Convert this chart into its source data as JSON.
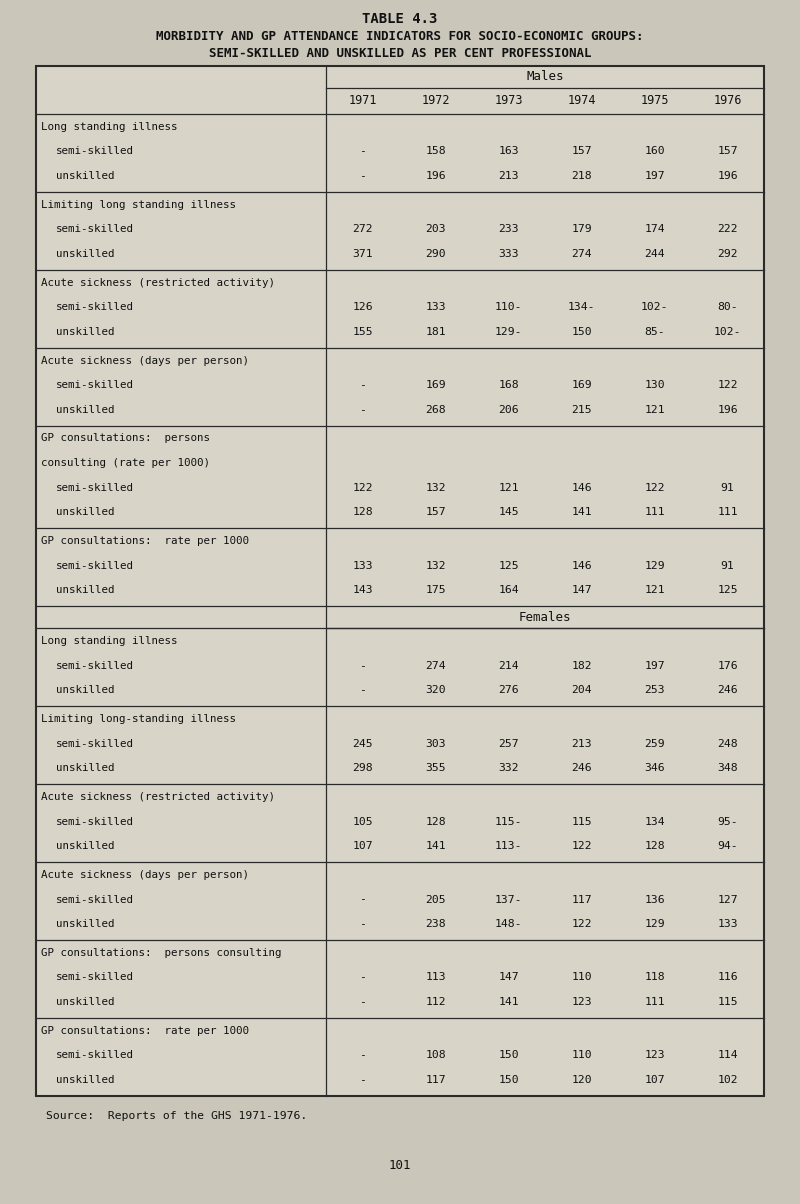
{
  "title_line1": "TABLE 4.3",
  "title_line2": "MORBIDITY AND GP ATTENDANCE INDICATORS FOR SOCIO-ECONOMIC GROUPS:",
  "title_line3": "SEMI-SKILLED AND UNSKILLED AS PER CENT PROFESSIONAL",
  "source": "Source:  Reports of the GHS 1971-1976.",
  "page_number": "101",
  "bg_color": "#cac6ba",
  "table_bg": "#cac6ba",
  "header_cols": [
    "1971",
    "1972",
    "1973",
    "1974",
    "1975",
    "1976"
  ],
  "male_groups": [
    {
      "title_lines": [
        "Long standing illness"
      ],
      "semi": [
        "-",
        "158",
        "163",
        "157",
        "160",
        "157"
      ],
      "unskilled": [
        "-",
        "196",
        "213",
        "218",
        "197",
        "196"
      ]
    },
    {
      "title_lines": [
        "Limiting long standing illness"
      ],
      "semi": [
        "272",
        "203",
        "233",
        "179",
        "174",
        "222"
      ],
      "unskilled": [
        "371",
        "290",
        "333",
        "274",
        "244",
        "292"
      ]
    },
    {
      "title_lines": [
        "Acute sickness (restricted activity)"
      ],
      "semi": [
        "126",
        "133",
        "110-",
        "134-",
        "102-",
        "80-"
      ],
      "unskilled": [
        "155",
        "181",
        "129-",
        "150",
        "85-",
        "102-"
      ]
    },
    {
      "title_lines": [
        "Acute sickness (days per person)"
      ],
      "semi": [
        "-",
        "169",
        "168",
        "169",
        "130",
        "122"
      ],
      "unskilled": [
        "-",
        "268",
        "206",
        "215",
        "121",
        "196"
      ]
    },
    {
      "title_lines": [
        "GP consultations:  persons",
        "consulting (rate per 1000)"
      ],
      "semi": [
        "122",
        "132",
        "121",
        "146",
        "122",
        "91"
      ],
      "unskilled": [
        "128",
        "157",
        "145",
        "141",
        "111",
        "111"
      ]
    },
    {
      "title_lines": [
        "GP consultations:  rate per 1000"
      ],
      "semi": [
        "133",
        "132",
        "125",
        "146",
        "129",
        "91"
      ],
      "unskilled": [
        "143",
        "175",
        "164",
        "147",
        "121",
        "125"
      ]
    }
  ],
  "female_groups": [
    {
      "title_lines": [
        "Long standing illness"
      ],
      "semi": [
        "-",
        "274",
        "214",
        "182",
        "197",
        "176"
      ],
      "unskilled": [
        "-",
        "320",
        "276",
        "204",
        "253",
        "246"
      ]
    },
    {
      "title_lines": [
        "Limiting long-standing illness"
      ],
      "semi": [
        "245",
        "303",
        "257",
        "213",
        "259",
        "248"
      ],
      "unskilled": [
        "298",
        "355",
        "332",
        "246",
        "346",
        "348"
      ]
    },
    {
      "title_lines": [
        "Acute sickness (restricted activity)"
      ],
      "semi": [
        "105",
        "128",
        "115-",
        "115",
        "134",
        "95-"
      ],
      "unskilled": [
        "107",
        "141",
        "113-",
        "122",
        "128",
        "94-"
      ]
    },
    {
      "title_lines": [
        "Acute sickness (days per person)"
      ],
      "semi": [
        "-",
        "205",
        "137-",
        "117",
        "136",
        "127"
      ],
      "unskilled": [
        "-",
        "238",
        "148-",
        "122",
        "129",
        "133"
      ]
    },
    {
      "title_lines": [
        "GP consultations:  persons consulting"
      ],
      "semi": [
        "-",
        "113",
        "147",
        "110",
        "118",
        "116"
      ],
      "unskilled": [
        "-",
        "112",
        "141",
        "123",
        "111",
        "115"
      ]
    },
    {
      "title_lines": [
        "GP consultations:  rate per 1000"
      ],
      "semi": [
        "-",
        "108",
        "150",
        "110",
        "123",
        "114"
      ],
      "unskilled": [
        "-",
        "117",
        "150",
        "120",
        "107",
        "102"
      ]
    }
  ]
}
